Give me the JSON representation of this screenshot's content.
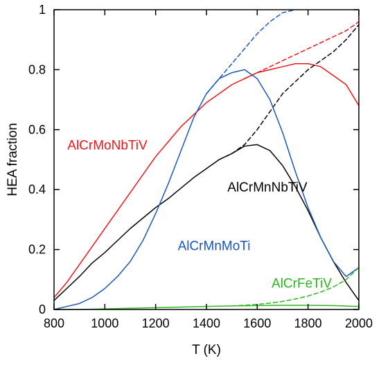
{
  "chart_data": {
    "type": "line",
    "title": "",
    "xlabel": "T (K)",
    "ylabel": "HEA fraction",
    "xlim": [
      800,
      2000
    ],
    "ylim": [
      0,
      1
    ],
    "x_ticks": [
      800,
      1000,
      1200,
      1400,
      1600,
      1800,
      2000
    ],
    "x_tick_labels": [
      "800",
      "1000",
      "1200",
      "1400",
      "1600",
      "1800",
      "2000"
    ],
    "y_ticks": [
      0,
      0.2,
      0.4,
      0.6,
      0.8,
      1
    ],
    "y_tick_labels": [
      "0",
      "0.2",
      "0.4",
      "0.6",
      "0.8",
      "1"
    ],
    "grid": false,
    "legend": "inline labels",
    "series": [
      {
        "name": "AlCrMoNbTiV",
        "color": "#e8191e",
        "x": [
          800,
          850,
          900,
          950,
          1000,
          1050,
          1100,
          1150,
          1200,
          1250,
          1300,
          1350,
          1400,
          1450,
          1500,
          1550,
          1600,
          1650,
          1700,
          1750,
          1800,
          1850,
          1900,
          1950,
          2000
        ],
        "y": [
          0.04,
          0.09,
          0.15,
          0.21,
          0.27,
          0.33,
          0.39,
          0.45,
          0.51,
          0.56,
          0.61,
          0.65,
          0.69,
          0.72,
          0.75,
          0.77,
          0.79,
          0.8,
          0.81,
          0.82,
          0.82,
          0.81,
          0.78,
          0.75,
          0.68
        ]
      },
      {
        "name": "AlCrMoNbTiV (dashed)",
        "color": "#e8191e",
        "x": [
          1550,
          1600,
          1650,
          1700,
          1750,
          1800,
          1850,
          1900,
          1950,
          2000
        ],
        "y": [
          0.77,
          0.79,
          0.81,
          0.83,
          0.85,
          0.87,
          0.89,
          0.91,
          0.93,
          0.96
        ]
      },
      {
        "name": "AlCrMnNbTiV",
        "color": "#000000",
        "x": [
          800,
          850,
          900,
          950,
          1000,
          1050,
          1100,
          1150,
          1200,
          1250,
          1300,
          1350,
          1400,
          1450,
          1500,
          1550,
          1600,
          1650,
          1700,
          1750,
          1800,
          1850,
          1900,
          1950,
          2000
        ],
        "y": [
          0.03,
          0.07,
          0.11,
          0.155,
          0.19,
          0.23,
          0.27,
          0.305,
          0.34,
          0.37,
          0.405,
          0.44,
          0.47,
          0.5,
          0.52,
          0.545,
          0.55,
          0.53,
          0.48,
          0.41,
          0.33,
          0.24,
          0.16,
          0.09,
          0.03
        ]
      },
      {
        "name": "AlCrMnNbTiV (dashed)",
        "color": "#000000",
        "x": [
          1450,
          1500,
          1550,
          1600,
          1650,
          1700,
          1750,
          1800,
          1850,
          1900,
          1950,
          2000
        ],
        "y": [
          0.5,
          0.52,
          0.55,
          0.6,
          0.66,
          0.72,
          0.76,
          0.8,
          0.83,
          0.86,
          0.9,
          0.95
        ]
      },
      {
        "name": "AlCrMnMoTi",
        "color": "#1a56b8",
        "x": [
          800,
          850,
          900,
          950,
          1000,
          1050,
          1100,
          1150,
          1200,
          1250,
          1300,
          1350,
          1400,
          1450,
          1500,
          1550,
          1600,
          1650,
          1700,
          1750,
          1800,
          1850,
          1900,
          1950,
          2000
        ],
        "y": [
          0.0,
          0.01,
          0.02,
          0.04,
          0.07,
          0.11,
          0.16,
          0.23,
          0.32,
          0.42,
          0.53,
          0.64,
          0.72,
          0.77,
          0.79,
          0.8,
          0.77,
          0.7,
          0.59,
          0.46,
          0.34,
          0.24,
          0.16,
          0.11,
          0.14
        ]
      },
      {
        "name": "AlCrMnMoTi (dashed)",
        "color": "#1a56b8",
        "x": [
          1400,
          1450,
          1500,
          1550,
          1600,
          1650,
          1700,
          1750
        ],
        "y": [
          0.72,
          0.77,
          0.82,
          0.87,
          0.92,
          0.96,
          0.99,
          1.0
        ]
      },
      {
        "name": "AlCrFeTiV",
        "color": "#2db51f",
        "x": [
          800,
          900,
          1000,
          1100,
          1200,
          1300,
          1400,
          1500,
          1600,
          1700,
          1800,
          1900,
          2000
        ],
        "y": [
          0.0,
          0.0,
          0.002,
          0.004,
          0.006,
          0.008,
          0.01,
          0.012,
          0.013,
          0.014,
          0.014,
          0.013,
          0.01
        ]
      },
      {
        "name": "AlCrFeTiV (dashed)",
        "color": "#2db51f",
        "x": [
          1500,
          1550,
          1600,
          1650,
          1700,
          1750,
          1800,
          1850,
          1900,
          1950,
          2000
        ],
        "y": [
          0.012,
          0.014,
          0.017,
          0.021,
          0.027,
          0.035,
          0.045,
          0.058,
          0.075,
          0.1,
          0.14
        ]
      }
    ],
    "annotations": [
      {
        "text": "AlCrMoNbTiV",
        "color": "#e8191e",
        "x": 1010,
        "y": 0.545
      },
      {
        "text": "AlCrMnNbTiV",
        "color": "#000000",
        "x": 1640,
        "y": 0.405
      },
      {
        "text": "AlCrMnMoTi",
        "color": "#1a56b8",
        "x": 1430,
        "y": 0.21
      },
      {
        "text": "AlCrFeTiV",
        "color": "#2db51f",
        "x": 1775,
        "y": 0.085
      }
    ]
  }
}
